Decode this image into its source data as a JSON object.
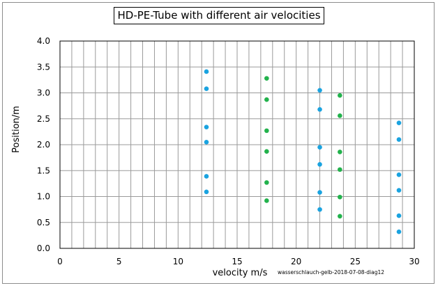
{
  "chart_data": {
    "type": "scatter",
    "title": "HD-PE-Tube with different air velocities",
    "xlabel": "velocity m/s",
    "ylabel": "Position/m",
    "annotation": "wasserschlauch-gelb-2018-07-08-diag12",
    "xlim": [
      0,
      30
    ],
    "ylim": [
      0,
      4
    ],
    "x_major_ticks": [
      0,
      5,
      10,
      15,
      20,
      25,
      30
    ],
    "x_minor_step": 1,
    "y_ticks": [
      0.0,
      0.5,
      1.0,
      1.5,
      2.0,
      2.5,
      3.0,
      3.5,
      4.0
    ],
    "y_tick_labels": [
      "0.0",
      "0.5",
      "1.0",
      "1.5",
      "2.0",
      "2.5",
      "3.0",
      "3.5",
      "4.0"
    ],
    "grid": true,
    "series": [
      {
        "color": "#1aa3e0",
        "points": [
          [
            12.4,
            3.41
          ],
          [
            12.4,
            3.08
          ],
          [
            12.4,
            2.34
          ],
          [
            12.4,
            2.05
          ],
          [
            12.4,
            1.39
          ],
          [
            12.4,
            1.09
          ],
          [
            22.0,
            3.05
          ],
          [
            22.0,
            2.68
          ],
          [
            22.0,
            1.95
          ],
          [
            22.0,
            1.62
          ],
          [
            22.0,
            1.08
          ],
          [
            22.0,
            0.75
          ],
          [
            28.7,
            2.42
          ],
          [
            28.7,
            2.1
          ],
          [
            28.7,
            1.42
          ],
          [
            28.7,
            1.12
          ],
          [
            28.7,
            0.63
          ],
          [
            28.7,
            0.32
          ]
        ]
      },
      {
        "color": "#22b24c",
        "points": [
          [
            17.5,
            3.28
          ],
          [
            17.5,
            2.87
          ],
          [
            17.5,
            2.27
          ],
          [
            17.5,
            1.87
          ],
          [
            17.5,
            1.27
          ],
          [
            17.5,
            0.92
          ],
          [
            23.7,
            2.95
          ],
          [
            23.7,
            2.56
          ],
          [
            23.7,
            1.86
          ],
          [
            23.7,
            1.52
          ],
          [
            23.7,
            0.99
          ],
          [
            23.7,
            0.62
          ]
        ]
      }
    ]
  }
}
